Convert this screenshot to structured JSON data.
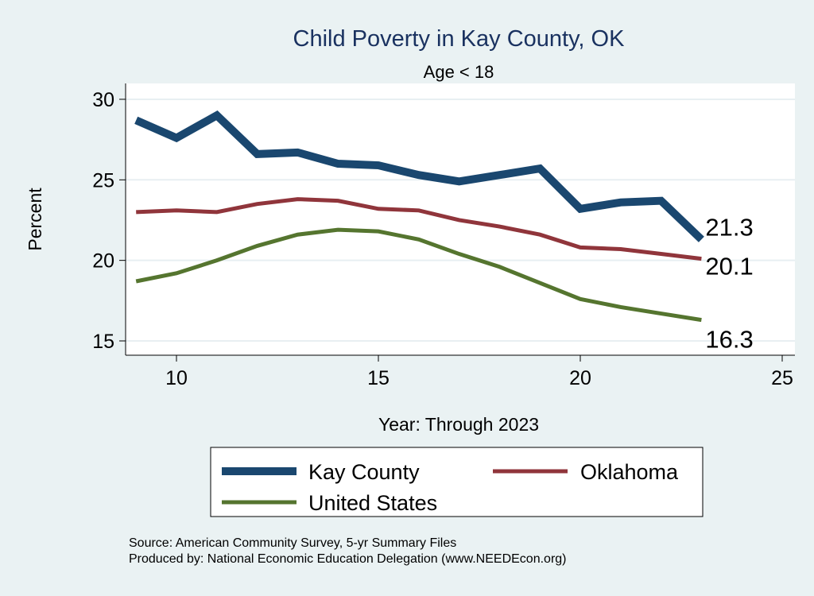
{
  "chart_data": {
    "type": "line",
    "title": "Child Poverty in Kay County, OK",
    "subtitle": "Age < 18",
    "xlabel": "Year: Through 2023",
    "ylabel": "Percent",
    "xlim": [
      8.8,
      25.3
    ],
    "ylim": [
      14.1,
      31.0
    ],
    "xticks": [
      10,
      15,
      20,
      25
    ],
    "yticks": [
      15,
      20,
      25,
      30
    ],
    "grid": true,
    "legend_placement": "bottom",
    "x": [
      9,
      10,
      11,
      12,
      13,
      14,
      15,
      16,
      17,
      18,
      19,
      20,
      21,
      22,
      23
    ],
    "series": [
      {
        "name": "Kay County",
        "color": "#1a476f",
        "values": [
          28.7,
          27.6,
          29.0,
          26.6,
          26.7,
          26.0,
          25.9,
          25.3,
          24.9,
          25.3,
          25.7,
          23.2,
          23.6,
          23.7,
          21.3
        ],
        "end_label": "21.3"
      },
      {
        "name": "Oklahoma",
        "color": "#90353b",
        "values": [
          23.0,
          23.1,
          23.0,
          23.5,
          23.8,
          23.7,
          23.2,
          23.1,
          22.5,
          22.1,
          21.6,
          20.8,
          20.7,
          20.4,
          20.1
        ],
        "end_label": "20.1"
      },
      {
        "name": "United States",
        "color": "#55752f",
        "values": [
          18.7,
          19.2,
          20.0,
          20.9,
          21.6,
          21.9,
          21.8,
          21.3,
          20.4,
          19.6,
          18.6,
          17.6,
          17.1,
          16.7,
          16.3
        ],
        "end_label": "16.3"
      }
    ]
  },
  "notes": {
    "source": "Source: American Community Survey, 5-yr Summary Files",
    "producer": "Produced by: National Economic Education Delegation (www.NEEDEcon.org)"
  }
}
